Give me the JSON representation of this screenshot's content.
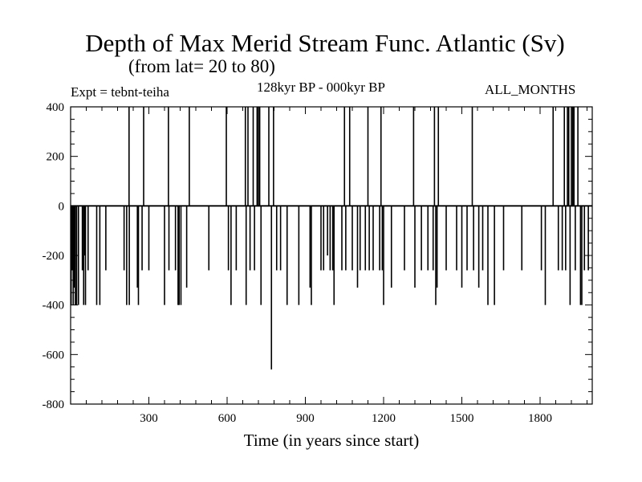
{
  "chart_data": {
    "type": "line",
    "title": "Depth of Max Merid Stream Func. Atlantic (Sv)",
    "subtitle": "(from lat= 20 to 80)",
    "annotations": {
      "experiment": "Expt = tebnt-teiha",
      "period": "128kyr BP - 000kyr BP",
      "months": "ALL_MONTHS"
    },
    "xlabel": "Time (in years since start)",
    "ylabel": "",
    "xlim": [
      0,
      2000
    ],
    "ylim": [
      -800,
      400
    ],
    "x_ticks": [
      300,
      600,
      900,
      1200,
      1500,
      1800
    ],
    "y_ticks": [
      400,
      200,
      0,
      -200,
      -400,
      -600,
      -800
    ],
    "grid": false,
    "legend": "none",
    "baseline": 0,
    "series": [
      {
        "color": "#000000",
        "spikes": [
          {
            "x": 2,
            "y": -400
          },
          {
            "x": 6,
            "y": -260
          },
          {
            "x": 10,
            "y": -400
          },
          {
            "x": 14,
            "y": -330
          },
          {
            "x": 18,
            "y": -400
          },
          {
            "x": 23,
            "y": -400
          },
          {
            "x": 30,
            "y": -400
          },
          {
            "x": 45,
            "y": -260
          },
          {
            "x": 50,
            "y": -400
          },
          {
            "x": 53,
            "y": -200
          },
          {
            "x": 57,
            "y": -400
          },
          {
            "x": 67,
            "y": -260
          },
          {
            "x": 100,
            "y": -400
          },
          {
            "x": 112,
            "y": -400
          },
          {
            "x": 135,
            "y": -260
          },
          {
            "x": 205,
            "y": -260
          },
          {
            "x": 215,
            "y": -400
          },
          {
            "x": 224,
            "y": 400
          },
          {
            "x": 225,
            "y": -400
          },
          {
            "x": 256,
            "y": -330
          },
          {
            "x": 260,
            "y": -400
          },
          {
            "x": 274,
            "y": -260
          },
          {
            "x": 280,
            "y": 400
          },
          {
            "x": 300,
            "y": -260
          },
          {
            "x": 360,
            "y": -400
          },
          {
            "x": 375,
            "y": 400
          },
          {
            "x": 377,
            "y": -260
          },
          {
            "x": 402,
            "y": -260
          },
          {
            "x": 412,
            "y": -400
          },
          {
            "x": 416,
            "y": -400
          },
          {
            "x": 423,
            "y": -400
          },
          {
            "x": 445,
            "y": -330
          },
          {
            "x": 455,
            "y": 400
          },
          {
            "x": 530,
            "y": -260
          },
          {
            "x": 597,
            "y": 400
          },
          {
            "x": 605,
            "y": -260
          },
          {
            "x": 615,
            "y": -400
          },
          {
            "x": 635,
            "y": -260
          },
          {
            "x": 670,
            "y": 400
          },
          {
            "x": 673,
            "y": -400
          },
          {
            "x": 680,
            "y": 400
          },
          {
            "x": 688,
            "y": -260
          },
          {
            "x": 700,
            "y": 400
          },
          {
            "x": 705,
            "y": -260
          },
          {
            "x": 715,
            "y": 400
          },
          {
            "x": 720,
            "y": 400
          },
          {
            "x": 725,
            "y": 400
          },
          {
            "x": 730,
            "y": -400
          },
          {
            "x": 760,
            "y": 400
          },
          {
            "x": 770,
            "y": -660
          },
          {
            "x": 778,
            "y": 400
          },
          {
            "x": 790,
            "y": -260
          },
          {
            "x": 805,
            "y": -260
          },
          {
            "x": 830,
            "y": -400
          },
          {
            "x": 875,
            "y": -400
          },
          {
            "x": 918,
            "y": -330
          },
          {
            "x": 923,
            "y": -400
          },
          {
            "x": 960,
            "y": -260
          },
          {
            "x": 970,
            "y": -260
          },
          {
            "x": 985,
            "y": -200
          },
          {
            "x": 995,
            "y": -260
          },
          {
            "x": 1005,
            "y": -260
          },
          {
            "x": 1010,
            "y": -400
          },
          {
            "x": 1040,
            "y": -260
          },
          {
            "x": 1050,
            "y": 400
          },
          {
            "x": 1055,
            "y": -260
          },
          {
            "x": 1070,
            "y": 400
          },
          {
            "x": 1080,
            "y": -260
          },
          {
            "x": 1100,
            "y": -330
          },
          {
            "x": 1110,
            "y": -260
          },
          {
            "x": 1130,
            "y": -260
          },
          {
            "x": 1140,
            "y": 400
          },
          {
            "x": 1145,
            "y": -260
          },
          {
            "x": 1160,
            "y": -260
          },
          {
            "x": 1185,
            "y": -260
          },
          {
            "x": 1190,
            "y": 400
          },
          {
            "x": 1195,
            "y": -260
          },
          {
            "x": 1200,
            "y": -400
          },
          {
            "x": 1230,
            "y": -330
          },
          {
            "x": 1280,
            "y": -260
          },
          {
            "x": 1315,
            "y": 400
          },
          {
            "x": 1320,
            "y": -330
          },
          {
            "x": 1345,
            "y": -260
          },
          {
            "x": 1370,
            "y": -260
          },
          {
            "x": 1390,
            "y": -260
          },
          {
            "x": 1395,
            "y": 400
          },
          {
            "x": 1400,
            "y": -400
          },
          {
            "x": 1405,
            "y": -330
          },
          {
            "x": 1410,
            "y": 400
          },
          {
            "x": 1440,
            "y": -260
          },
          {
            "x": 1480,
            "y": -260
          },
          {
            "x": 1500,
            "y": -330
          },
          {
            "x": 1520,
            "y": -260
          },
          {
            "x": 1540,
            "y": 400
          },
          {
            "x": 1545,
            "y": -260
          },
          {
            "x": 1565,
            "y": -330
          },
          {
            "x": 1580,
            "y": -260
          },
          {
            "x": 1600,
            "y": -400
          },
          {
            "x": 1625,
            "y": -400
          },
          {
            "x": 1660,
            "y": -260
          },
          {
            "x": 1730,
            "y": -260
          },
          {
            "x": 1805,
            "y": -260
          },
          {
            "x": 1820,
            "y": -400
          },
          {
            "x": 1850,
            "y": 400
          },
          {
            "x": 1870,
            "y": -260
          },
          {
            "x": 1885,
            "y": -260
          },
          {
            "x": 1893,
            "y": 400
          },
          {
            "x": 1898,
            "y": -260
          },
          {
            "x": 1905,
            "y": 400
          },
          {
            "x": 1910,
            "y": 400
          },
          {
            "x": 1915,
            "y": -400
          },
          {
            "x": 1920,
            "y": 400
          },
          {
            "x": 1925,
            "y": 400
          },
          {
            "x": 1930,
            "y": 400
          },
          {
            "x": 1935,
            "y": -260
          },
          {
            "x": 1945,
            "y": 400
          },
          {
            "x": 1955,
            "y": -400
          },
          {
            "x": 1960,
            "y": -400
          },
          {
            "x": 1970,
            "y": -260
          },
          {
            "x": 1985,
            "y": -260
          }
        ]
      }
    ]
  }
}
